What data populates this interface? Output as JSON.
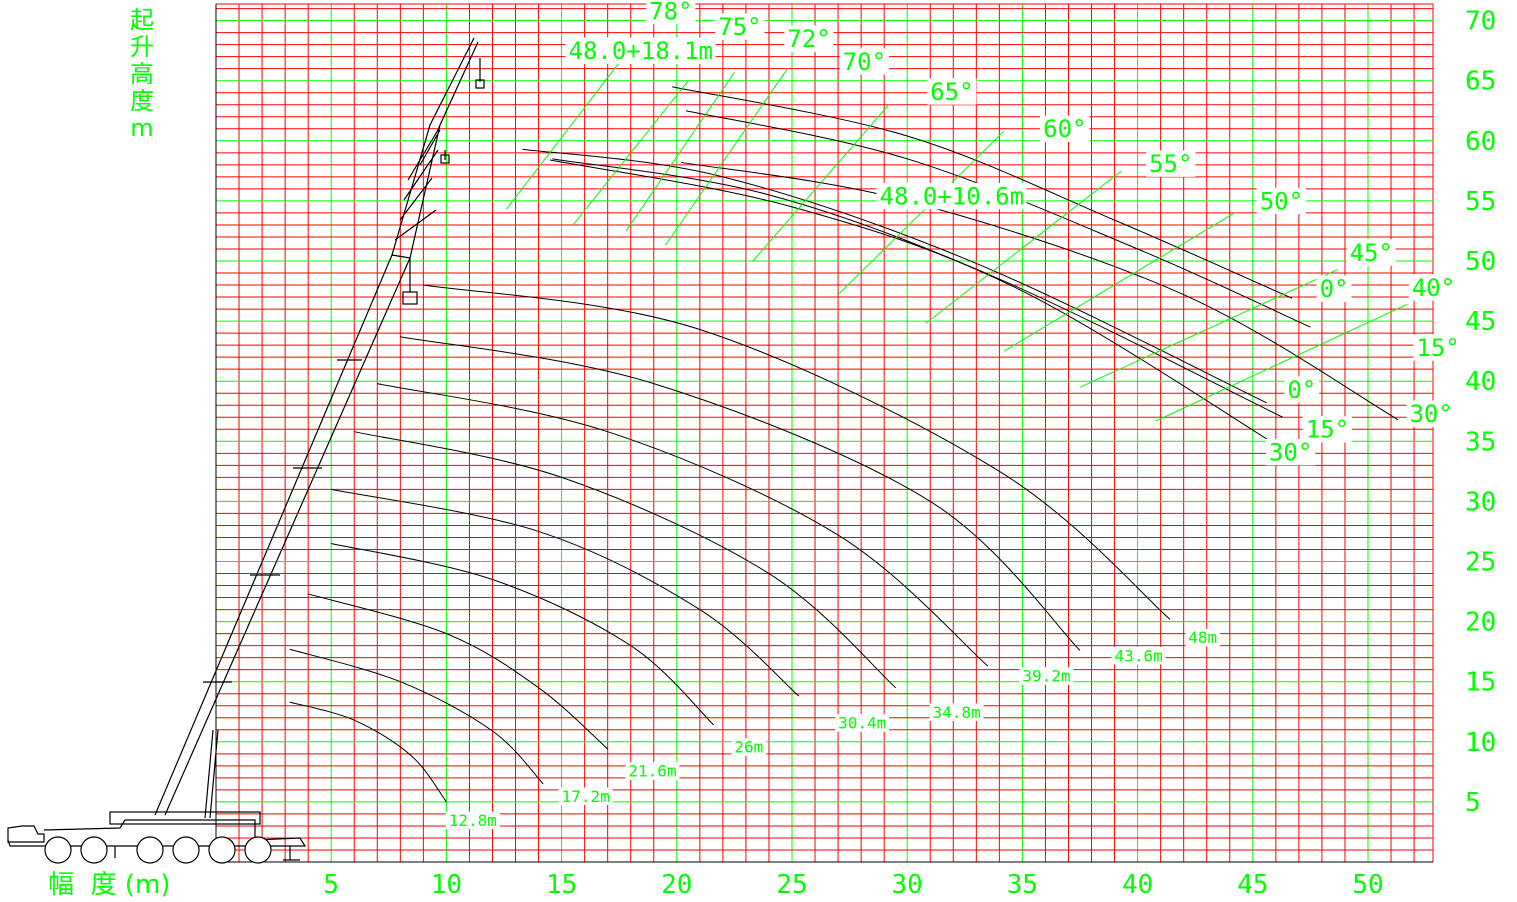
{
  "y_title": [
    "起",
    "升",
    "高",
    "度",
    "m"
  ],
  "x_title": "幅  度 (m)",
  "colors": {
    "grid_major": "#00ff00",
    "grid_minor": "#ff0000",
    "curve": "#000000",
    "label": "#00ff00"
  },
  "chart_data": {
    "type": "line",
    "x_axis": {
      "ticks": [
        5,
        10,
        15,
        20,
        25,
        30,
        35,
        40,
        45,
        50
      ],
      "range": [
        0,
        53
      ]
    },
    "y_axis": {
      "ticks": [
        5,
        10,
        15,
        20,
        25,
        30,
        35,
        40,
        45,
        50,
        55,
        60,
        65,
        70
      ],
      "range": [
        0,
        71
      ]
    },
    "boom_curves": [
      {
        "name": "12.8m",
        "points": [
          [
            3.2,
            13.3
          ],
          [
            6,
            11.8
          ],
          [
            8.5,
            8.8
          ],
          [
            10,
            5.0
          ]
        ]
      },
      {
        "name": "17.2m",
        "points": [
          [
            3.2,
            17.7
          ],
          [
            8,
            15.0
          ],
          [
            12,
            10.9
          ],
          [
            14.2,
            6.5
          ]
        ]
      },
      {
        "name": "21.6m",
        "points": [
          [
            4.0,
            22.3
          ],
          [
            10,
            19.0
          ],
          [
            14,
            14.5
          ],
          [
            17,
            9.4
          ]
        ]
      },
      {
        "name": "26m",
        "points": [
          [
            5.0,
            26.5
          ],
          [
            12,
            23.5
          ],
          [
            18,
            18.0
          ],
          [
            21.6,
            11.4
          ]
        ]
      },
      {
        "name": "30.4m",
        "points": [
          [
            5.0,
            31.0
          ],
          [
            14,
            27.5
          ],
          [
            21,
            21.0
          ],
          [
            25.3,
            13.8
          ]
        ]
      },
      {
        "name": "34.8m",
        "points": [
          [
            6.0,
            35.8
          ],
          [
            15,
            32.0
          ],
          [
            24,
            24.0
          ],
          [
            29.5,
            14.5
          ]
        ]
      },
      {
        "name": "39.2m",
        "points": [
          [
            7.0,
            39.8
          ],
          [
            17,
            35.8
          ],
          [
            27,
            27.2
          ],
          [
            33.5,
            16.3
          ]
        ]
      },
      {
        "name": "43.6m",
        "points": [
          [
            8.0,
            43.7
          ],
          [
            19,
            39.8
          ],
          [
            31,
            30.0
          ],
          [
            37.5,
            17.6
          ]
        ]
      },
      {
        "name": "48m",
        "points": [
          [
            9.0,
            48.0
          ],
          [
            21,
            44.3
          ],
          [
            34,
            32.5
          ],
          [
            41.4,
            20.2
          ]
        ]
      }
    ],
    "jib_curves": [
      {
        "name": "0°",
        "points": [
          [
            19.8,
            64.5
          ],
          [
            30,
            60.4
          ],
          [
            39,
            53.4
          ],
          [
            46.7,
            46.9
          ]
        ]
      },
      {
        "name": "15°",
        "points": [
          [
            20.4,
            62.5
          ],
          [
            30,
            58.5
          ],
          [
            40,
            51.0
          ],
          [
            47.5,
            44.5
          ]
        ]
      },
      {
        "name": "30°",
        "points": [
          [
            20.2,
            58.2
          ],
          [
            30,
            55.0
          ],
          [
            42,
            47.2
          ],
          [
            51.3,
            36.8
          ]
        ]
      },
      {
        "name": "0°",
        "points": [
          [
            13.3,
            59.3
          ],
          [
            22,
            57.0
          ],
          [
            33,
            49.8
          ],
          [
            45.6,
            38.2
          ]
        ]
      },
      {
        "name": "15°",
        "points": [
          [
            14.6,
            58.5
          ],
          [
            24,
            55.5
          ],
          [
            34,
            48.5
          ],
          [
            46.3,
            37.0
          ]
        ]
      },
      {
        "name": "30°",
        "points": [
          [
            14.5,
            58.4
          ],
          [
            25,
            54.5
          ],
          [
            35,
            47.5
          ],
          [
            47,
            33.5
          ]
        ]
      }
    ],
    "angle_lines": [
      {
        "label": "78°",
        "points": [
          [
            12.6,
            54.3
          ],
          [
            17.5,
            66.5
          ]
        ]
      },
      {
        "label": "75°",
        "points": [
          [
            15.5,
            53.0
          ],
          [
            20.5,
            65.0
          ]
        ]
      },
      {
        "label": "72°",
        "points": [
          [
            17.8,
            52.5
          ],
          [
            22.5,
            65.7
          ]
        ]
      },
      {
        "label": "70°",
        "points": [
          [
            19.5,
            51.3
          ],
          [
            24.8,
            66.0
          ]
        ]
      },
      {
        "label": "65°",
        "points": [
          [
            23.3,
            50.0
          ],
          [
            29.2,
            63.0
          ]
        ]
      },
      {
        "label": "60°",
        "points": [
          [
            27.0,
            47.2
          ],
          [
            34.2,
            60.8
          ]
        ]
      },
      {
        "label": "55°",
        "points": [
          [
            30.8,
            44.8
          ],
          [
            39.3,
            57.5
          ]
        ]
      },
      {
        "label": "50°",
        "points": [
          [
            34.2,
            42.5
          ],
          [
            44.2,
            54.0
          ]
        ]
      },
      {
        "label": "45°",
        "points": [
          [
            37.5,
            39.5
          ],
          [
            48.7,
            49.3
          ]
        ]
      },
      {
        "label": "40°",
        "points": [
          [
            40.8,
            36.7
          ],
          [
            51.7,
            46.4
          ]
        ]
      }
    ],
    "curve_labels": [
      {
        "text": "12.8m",
        "x": 10.1,
        "y": 3.0
      },
      {
        "text": "17.2m",
        "x": 15.0,
        "y": 5.0
      },
      {
        "text": "21.6m",
        "x": 17.9,
        "y": 7.1
      },
      {
        "text": "26m",
        "x": 22.5,
        "y": 9.1
      },
      {
        "text": "30.4m",
        "x": 27.0,
        "y": 11.1
      },
      {
        "text": "34.8m",
        "x": 31.1,
        "y": 12.0
      },
      {
        "text": "39.2m",
        "x": 35.0,
        "y": 15.0
      },
      {
        "text": "43.6m",
        "x": 39.0,
        "y": 16.7
      },
      {
        "text": "48m",
        "x": 42.2,
        "y": 18.2
      },
      {
        "text": "48.0+18.1m",
        "x": 15.3,
        "y": 66.8
      },
      {
        "text": "48.0+10.6m",
        "x": 28.8,
        "y": 54.7
      },
      {
        "text": "78°",
        "x": 18.8,
        "y": 70.1
      },
      {
        "text": "75°",
        "x": 21.8,
        "y": 68.8
      },
      {
        "text": "72°",
        "x": 24.8,
        "y": 67.8
      },
      {
        "text": "70°",
        "x": 27.2,
        "y": 65.9
      },
      {
        "text": "65°",
        "x": 31.0,
        "y": 63.4
      },
      {
        "text": "60°",
        "x": 35.9,
        "y": 60.3
      },
      {
        "text": "55°",
        "x": 40.5,
        "y": 57.4
      },
      {
        "text": "50°",
        "x": 45.3,
        "y": 54.3
      },
      {
        "text": "45°",
        "x": 49.2,
        "y": 50.0
      },
      {
        "text": "0°",
        "x": 47.9,
        "y": 47.0
      },
      {
        "text": "40°",
        "x": 51.9,
        "y": 47.1
      },
      {
        "text": "15°",
        "x": 52.1,
        "y": 42.1
      },
      {
        "text": "0°",
        "x": 46.5,
        "y": 38.6
      },
      {
        "text": "30°",
        "x": 51.8,
        "y": 36.6
      },
      {
        "text": "15°",
        "x": 47.3,
        "y": 35.3
      },
      {
        "text": "30°",
        "x": 45.7,
        "y": 33.4
      }
    ]
  }
}
